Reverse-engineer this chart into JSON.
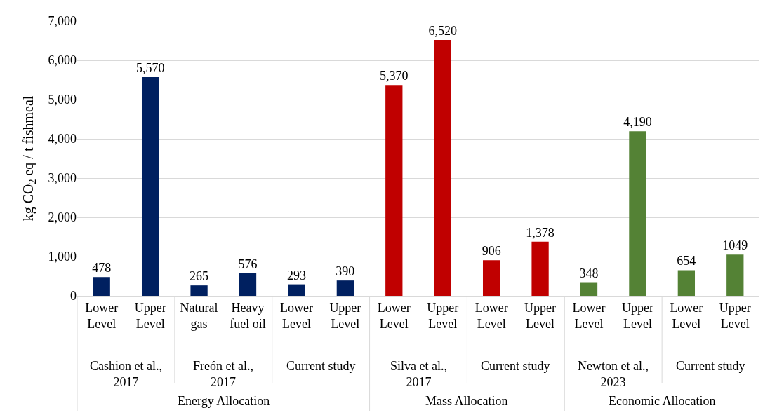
{
  "chart_data": {
    "type": "bar",
    "ylabel": "kg CO$_{2}$ eq / t fishmeal",
    "categories": [
      "Lower Level",
      "Upper Level",
      "Natural gas",
      "Heavy fuel oil",
      "Lower Level",
      "Upper Level",
      "Lower Level",
      "Upper Level",
      "Lower Level",
      "Upper Level",
      "Lower Level",
      "Upper Level",
      "Lower Level",
      "Upper Level"
    ],
    "values": [
      478,
      5570,
      265,
      576,
      293,
      390,
      5370,
      6520,
      906,
      1378,
      348,
      4190,
      654,
      1049
    ],
    "value_labels": [
      "478",
      "5,570",
      "265",
      "576",
      "293",
      "390",
      "5,370",
      "6,520",
      "906",
      "1,378",
      "348",
      "4,190",
      "654",
      "1049"
    ],
    "colors": [
      "#002060",
      "#002060",
      "#002060",
      "#002060",
      "#002060",
      "#002060",
      "#c00000",
      "#c00000",
      "#c00000",
      "#c00000",
      "#548235",
      "#548235",
      "#548235",
      "#548235"
    ],
    "ylim": [
      0,
      7000
    ],
    "yticks": [
      0,
      {
        "value": 1000,
        "label": "1,000"
      },
      {
        "value": 2000,
        "label": "2,000"
      },
      {
        "value": 3000,
        "label": "3,000"
      },
      {
        "value": 4000,
        "label": "4,000"
      },
      {
        "value": 5000,
        "label": "5,000"
      },
      {
        "value": 6000,
        "label": "6,000"
      },
      {
        "value": 7000,
        "label": "7,000"
      }
    ],
    "grid": "y",
    "annotations": [
      "Cashion et al., 2017",
      "Freón et al., 2017",
      "Current study",
      "Silva et al., 2017",
      "Current study",
      "Newton et al., 2023",
      "Current study",
      "Energy Allocation",
      "Mass Allocation",
      "Economic Allocation"
    ]
  }
}
